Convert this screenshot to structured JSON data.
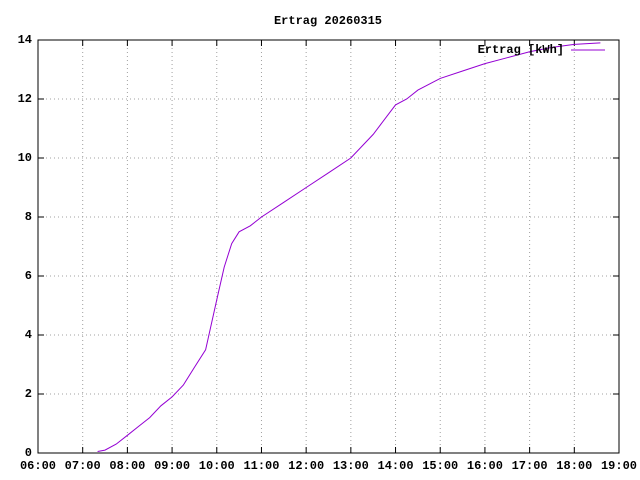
{
  "chart_data": {
    "type": "line",
    "title": "Ertrag 20260315",
    "x": [
      "07:20",
      "07:30",
      "07:45",
      "08:00",
      "08:15",
      "08:30",
      "08:45",
      "09:00",
      "09:15",
      "09:30",
      "09:45",
      "10:00",
      "10:10",
      "10:20",
      "10:30",
      "10:45",
      "11:00",
      "11:30",
      "12:00",
      "12:30",
      "13:00",
      "13:30",
      "14:00",
      "14:15",
      "14:30",
      "15:00",
      "15:30",
      "16:00",
      "16:30",
      "17:00",
      "17:30",
      "18:00",
      "18:35"
    ],
    "series": [
      {
        "name": "Ertrag [kWh]",
        "color": "#9400d3",
        "values": [
          0.05,
          0.1,
          0.3,
          0.6,
          0.9,
          1.2,
          1.6,
          1.9,
          2.3,
          2.9,
          3.5,
          5.2,
          6.3,
          7.1,
          7.5,
          7.7,
          8.0,
          8.5,
          9.0,
          9.5,
          10.0,
          10.8,
          11.8,
          12.0,
          12.3,
          12.7,
          12.95,
          13.2,
          13.4,
          13.6,
          13.75,
          13.85,
          13.9
        ]
      }
    ],
    "xlim": [
      "06:00",
      "19:00"
    ],
    "xticks": [
      "06:00",
      "07:00",
      "08:00",
      "09:00",
      "10:00",
      "11:00",
      "12:00",
      "13:00",
      "14:00",
      "15:00",
      "16:00",
      "17:00",
      "18:00",
      "19:00"
    ],
    "ylim": [
      0,
      14
    ],
    "yticks": [
      0,
      2,
      4,
      6,
      8,
      10,
      12,
      14
    ],
    "grid": true,
    "legend": "top-right"
  }
}
